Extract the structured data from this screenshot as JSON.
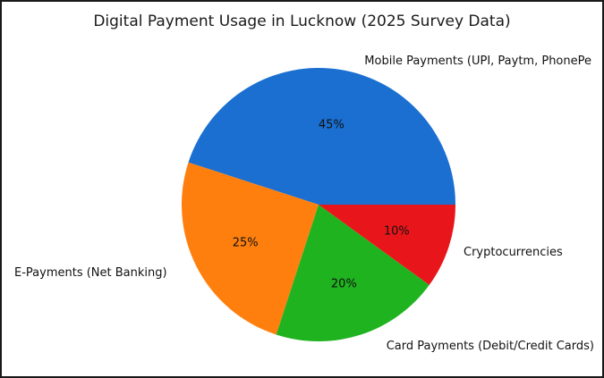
{
  "chart_data": {
    "type": "pie",
    "title": "Digital Payment Usage in Lucknow (2025 Survey Data)",
    "slices": [
      {
        "label": "Mobile Payments (UPI, Paytm, PhonePe",
        "value": 45,
        "pct_label": "45%",
        "color": "#1a6fd1"
      },
      {
        "label": "E-Payments (Net Banking)",
        "value": 25,
        "pct_label": "25%",
        "color": "#ff7f0e"
      },
      {
        "label": "Card Payments (Debit/Credit Cards)",
        "value": 20,
        "pct_label": "20%",
        "color": "#1fb31f"
      },
      {
        "label": "Cryptocurrencies",
        "value": 10,
        "pct_label": "10%",
        "color": "#e8161b"
      }
    ],
    "start_angle_deg": 0,
    "direction": "counterclockwise",
    "grid": false,
    "legend": "none"
  }
}
